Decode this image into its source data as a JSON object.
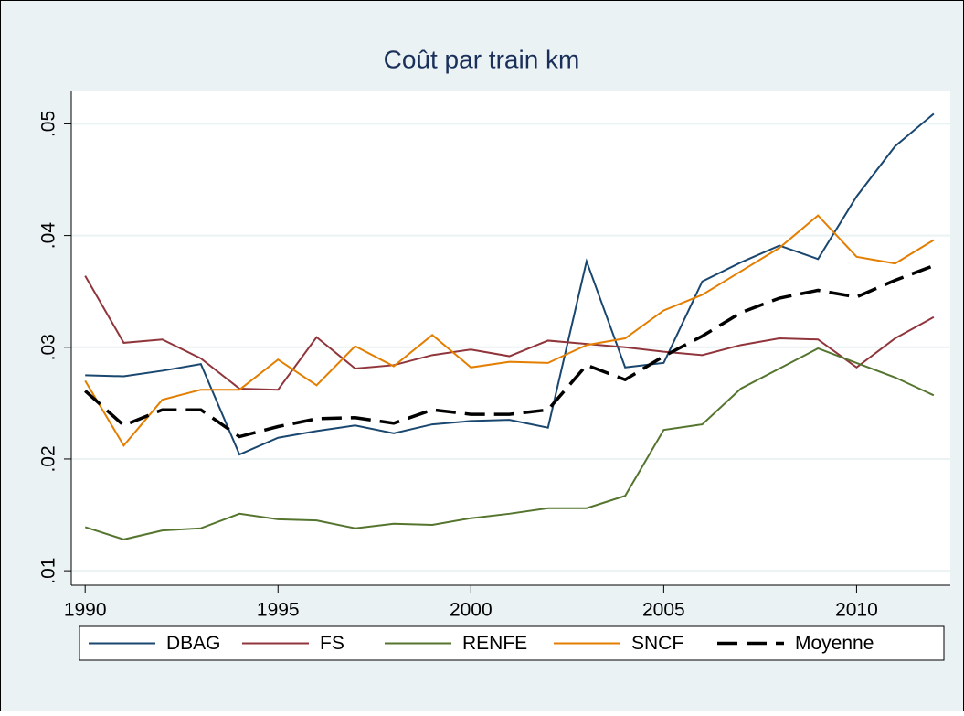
{
  "chart_data": {
    "type": "line",
    "title": "Coût par train km",
    "x": [
      1990,
      1991,
      1992,
      1993,
      1994,
      1995,
      1996,
      1997,
      1998,
      1999,
      2000,
      2001,
      2002,
      2003,
      2004,
      2005,
      2006,
      2007,
      2008,
      2009,
      2010,
      2011,
      2012
    ],
    "series": [
      {
        "name": "DBAG",
        "color": "#1a476f",
        "values": [
          0.0275,
          0.0274,
          0.0279,
          0.0285,
          0.0204,
          0.0219,
          0.0225,
          0.023,
          0.0223,
          0.0231,
          0.0234,
          0.0235,
          0.0228,
          0.0377,
          0.0282,
          0.0286,
          0.0359,
          0.0376,
          0.0391,
          0.0379,
          0.0435,
          0.048,
          0.0509
        ]
      },
      {
        "name": "FS",
        "color": "#90353b",
        "values": [
          0.0364,
          0.0304,
          0.0307,
          0.029,
          0.0263,
          0.0262,
          0.0309,
          0.0281,
          0.0284,
          0.0293,
          0.0298,
          0.0292,
          0.0306,
          0.0303,
          0.03,
          0.0296,
          0.0293,
          0.0302,
          0.0308,
          0.0307,
          0.0282,
          0.0308,
          0.0327
        ]
      },
      {
        "name": "RENFE",
        "color": "#55752f",
        "values": [
          0.0139,
          0.0128,
          0.0136,
          0.0138,
          0.0151,
          0.0146,
          0.0145,
          0.0138,
          0.0142,
          0.0141,
          0.0147,
          0.0151,
          0.0156,
          0.0156,
          0.0167,
          0.0226,
          0.0231,
          0.0263,
          0.0281,
          0.0299,
          0.0286,
          0.0273,
          0.0257
        ]
      },
      {
        "name": "SNCF",
        "color": "#e37e00",
        "values": [
          0.027,
          0.0212,
          0.0253,
          0.0262,
          0.0262,
          0.0289,
          0.0266,
          0.0301,
          0.0283,
          0.0311,
          0.0282,
          0.0287,
          0.0286,
          0.0302,
          0.0308,
          0.0333,
          0.0347,
          0.0368,
          0.0389,
          0.0418,
          0.0381,
          0.0375,
          0.0396
        ]
      },
      {
        "name": "Moyenne",
        "color": "#000000",
        "line_style": "dashed",
        "values": [
          0.0261,
          0.023,
          0.0244,
          0.0244,
          0.022,
          0.0229,
          0.0236,
          0.0237,
          0.0232,
          0.0244,
          0.024,
          0.024,
          0.0244,
          0.0284,
          0.0271,
          0.0292,
          0.031,
          0.0331,
          0.0344,
          0.0351,
          0.0345,
          0.036,
          0.0373
        ]
      }
    ],
    "xlim": [
      1989.64,
      2012.43
    ],
    "xticks": [
      1990,
      1995,
      2000,
      2005,
      2010
    ],
    "ylim": [
      0.0087,
      0.0529
    ],
    "yticks": [
      {
        "value": 0.01,
        "label": ".01"
      },
      {
        "value": 0.02,
        "label": ".02"
      },
      {
        "value": 0.03,
        "label": ".03"
      },
      {
        "value": 0.04,
        "label": ".04"
      },
      {
        "value": 0.05,
        "label": ".05"
      }
    ],
    "grid": true,
    "legend": "bottom"
  }
}
